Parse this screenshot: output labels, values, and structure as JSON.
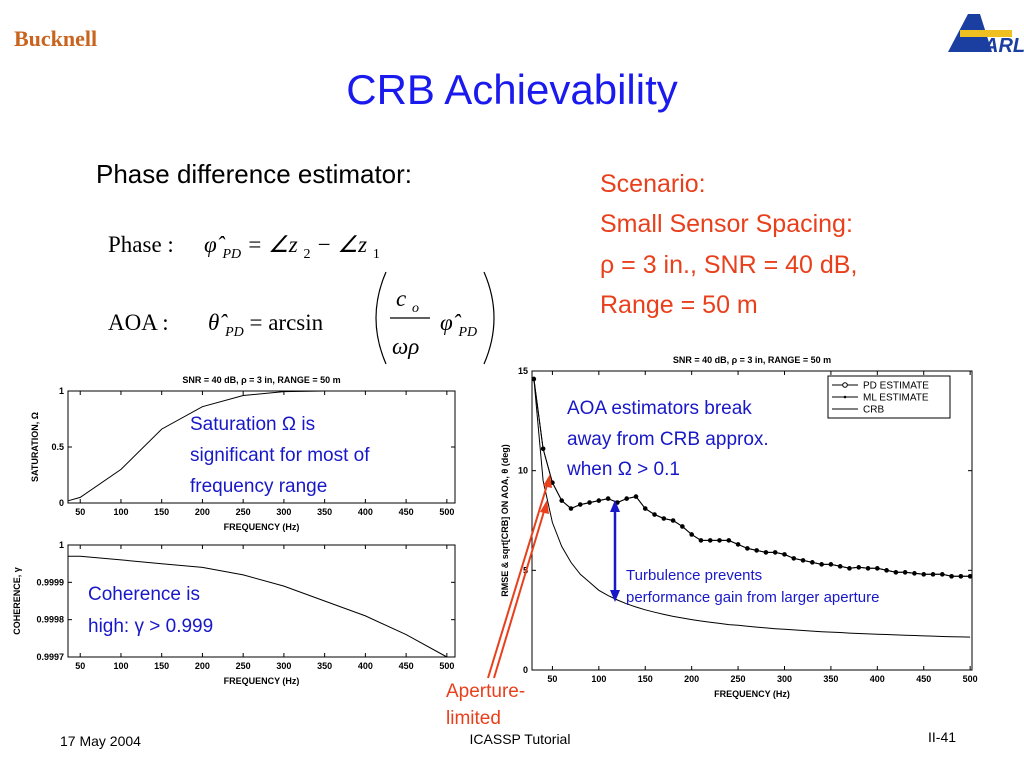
{
  "header": {
    "logo_left": "Bucknell",
    "logo_right": "ARL"
  },
  "slide": {
    "title": "CRB Achievability",
    "subtitle": "Phase difference estimator:",
    "eq_phase": {
      "label": "Phase :",
      "parts": [
        "φ̂",
        "PD",
        " = ∠z",
        "2",
        " − ∠z",
        "1"
      ]
    },
    "eq_aoa": {
      "label": "AOA :",
      "lhs": [
        "θ̂",
        "PD",
        " = arcsin"
      ],
      "num": [
        "c",
        "o"
      ],
      "den": "ωρ",
      "rhs": [
        "φ̂",
        "PD"
      ]
    },
    "scenario": [
      "Scenario:",
      "Small Sensor Spacing:",
      "ρ = 3 in., SNR = 40 dB,",
      "Range = 50 m"
    ],
    "saturation_note": [
      "Saturation Ω is",
      "significant for most of",
      "frequency range"
    ],
    "coherence_note": [
      "Coherence is",
      "high:  γ > 0.999"
    ],
    "aoa_note": [
      "AOA estimators break",
      "away from CRB approx.",
      "when Ω > 0.1"
    ],
    "turbulence_note": [
      "Turbulence prevents",
      "performance gain from larger aperture"
    ],
    "aperture_note": [
      "Aperture-",
      "limited"
    ]
  },
  "footer": {
    "date": "17 May 2004",
    "event": "ICASSP Tutorial",
    "page": "II-41"
  },
  "chart_data": [
    {
      "type": "line",
      "title": "SNR = 40 dB, ρ =  3 in, RANGE =  50 m",
      "x_label": "FREQUENCY (Hz)",
      "y_label": "SATURATION, Ω",
      "x": [
        35,
        50,
        100,
        150,
        200,
        250,
        300,
        350,
        400,
        450,
        500
      ],
      "values": [
        0.02,
        0.05,
        0.3,
        0.66,
        0.86,
        0.96,
        0.995,
        1,
        1,
        1,
        1
      ],
      "color": "#000000",
      "xlim": [
        35,
        510
      ],
      "xticks": [
        50,
        100,
        150,
        200,
        250,
        300,
        350,
        400,
        450,
        500
      ],
      "ylim": [
        0,
        1
      ],
      "yticks": [
        0,
        0.5,
        1
      ]
    },
    {
      "type": "line",
      "x_label": "FREQUENCY (Hz)",
      "y_label": "COHERENCE, γ",
      "x": [
        35,
        50,
        100,
        150,
        200,
        250,
        300,
        350,
        400,
        450,
        500
      ],
      "values": [
        0.99997,
        0.99997,
        0.99996,
        0.99995,
        0.99994,
        0.99992,
        0.99989,
        0.99985,
        0.99981,
        0.99976,
        0.9997
      ],
      "color": "#000000",
      "xlim": [
        35,
        510
      ],
      "xticks": [
        50,
        100,
        150,
        200,
        250,
        300,
        350,
        400,
        450,
        500
      ],
      "ylim": [
        0.9997,
        1
      ],
      "yticks": [
        0.9997,
        0.9998,
        0.9999,
        1
      ]
    },
    {
      "type": "line",
      "title": "SNR = 40 dB, ρ =  3 in, RANGE =  50 m",
      "x_label": "FREQUENCY (Hz)",
      "y_label": "RMSE & sqrt[CRB] ON AOA, θ (deg)",
      "x": [
        30,
        40,
        50,
        60,
        70,
        80,
        90,
        100,
        110,
        120,
        130,
        140,
        150,
        160,
        170,
        180,
        190,
        200,
        210,
        220,
        230,
        240,
        250,
        260,
        270,
        280,
        290,
        300,
        310,
        320,
        330,
        340,
        350,
        360,
        370,
        380,
        390,
        400,
        410,
        420,
        430,
        440,
        450,
        460,
        470,
        480,
        490,
        500
      ],
      "series": [
        {
          "name": "PD ESTIMATE",
          "color": "#000000",
          "marker": "circle",
          "values": [
            14.6,
            11.1,
            9.4,
            8.5,
            8.1,
            8.3,
            8.4,
            8.5,
            8.6,
            8.4,
            8.6,
            8.7,
            8.1,
            7.8,
            7.6,
            7.5,
            7.2,
            6.8,
            6.5,
            6.5,
            6.5,
            6.5,
            6.3,
            6.1,
            6.0,
            5.9,
            5.9,
            5.8,
            5.6,
            5.5,
            5.4,
            5.3,
            5.3,
            5.2,
            5.1,
            5.15,
            5.1,
            5.1,
            5.0,
            4.9,
            4.9,
            4.85,
            4.8,
            4.8,
            4.8,
            4.7,
            4.7,
            4.7
          ]
        },
        {
          "name": "ML ESTIMATE",
          "color": "#000000",
          "marker": "dot",
          "values": [
            14.6,
            11.1,
            9.4,
            8.5,
            8.1,
            8.3,
            8.4,
            8.5,
            8.6,
            8.4,
            8.6,
            8.7,
            8.1,
            7.8,
            7.6,
            7.5,
            7.2,
            6.8,
            6.5,
            6.5,
            6.5,
            6.5,
            6.3,
            6.1,
            6.0,
            5.9,
            5.9,
            5.8,
            5.6,
            5.5,
            5.4,
            5.3,
            5.3,
            5.2,
            5.1,
            5.15,
            5.1,
            5.1,
            5.0,
            4.9,
            4.9,
            4.85,
            4.8,
            4.8,
            4.8,
            4.7,
            4.7,
            4.7
          ]
        },
        {
          "name": "CRB",
          "color": "#000000",
          "marker": "none",
          "values": [
            14.6,
            9.5,
            7.4,
            6.2,
            5.4,
            4.8,
            4.4,
            4.0,
            3.73,
            3.51,
            3.32,
            3.16,
            3.02,
            2.9,
            2.79,
            2.69,
            2.61,
            2.53,
            2.46,
            2.4,
            2.34,
            2.28,
            2.24,
            2.19,
            2.15,
            2.11,
            2.07,
            2.04,
            2.01,
            1.98,
            1.95,
            1.92,
            1.9,
            1.88,
            1.85,
            1.83,
            1.81,
            1.79,
            1.78,
            1.76,
            1.74,
            1.73,
            1.71,
            1.7,
            1.68,
            1.67,
            1.66,
            1.65
          ]
        }
      ],
      "xlim": [
        28,
        502
      ],
      "xticks": [
        50,
        100,
        150,
        200,
        250,
        300,
        350,
        400,
        450,
        500
      ],
      "ylim": [
        0,
        15
      ],
      "yticks": [
        0,
        5,
        10,
        15
      ],
      "legend": "upper right"
    }
  ]
}
